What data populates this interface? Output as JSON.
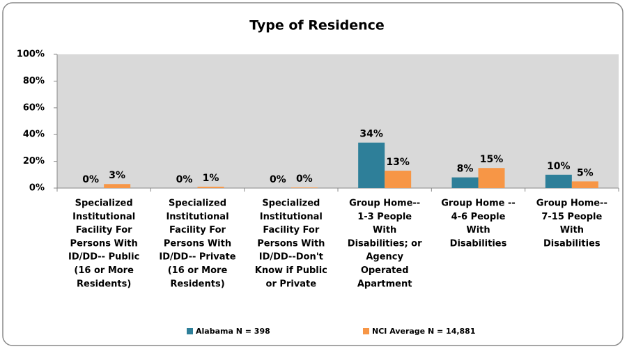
{
  "chart_data": {
    "type": "bar",
    "title": "Type of Residence",
    "categories": [
      [
        "Specialized",
        "Institutional",
        "Facility For",
        "Persons With",
        "ID/DD-- Public",
        "(16 or More",
        "Residents)"
      ],
      [
        "Specialized",
        "Institutional",
        "Facility For",
        "Persons With",
        "ID/DD-- Private",
        "(16 or More",
        "Residents)"
      ],
      [
        "Specialized",
        "Institutional",
        "Facility For",
        "Persons With",
        "ID/DD--Don't",
        "Know if Public",
        "or Private"
      ],
      [
        "Group Home--",
        "1-3 People",
        "With",
        "Disabilities; or",
        "Agency",
        "Operated",
        "Apartment"
      ],
      [
        "Group Home --",
        "4-6 People",
        "With",
        "Disabilities"
      ],
      [
        "Group Home--",
        "7-15 People",
        "With",
        "Disabilities"
      ]
    ],
    "series": [
      {
        "name": "Alabama N = 398",
        "color": "#2e7f99",
        "values": [
          0,
          0,
          0,
          34,
          8,
          10
        ],
        "value_labels": [
          "0%",
          "0%",
          "0%",
          "34%",
          "8%",
          "10%"
        ]
      },
      {
        "name": "NCI Average N = 14,881",
        "color": "#f79646",
        "values": [
          3,
          1,
          0.4,
          13,
          15,
          5
        ],
        "value_labels": [
          "3%",
          "1%",
          "0%",
          "13%",
          "15%",
          "5%"
        ]
      }
    ],
    "ylim": [
      0,
      100
    ],
    "yticks": [
      {
        "value": 0,
        "label": "0%"
      },
      {
        "value": 20,
        "label": "20%"
      },
      {
        "value": 40,
        "label": "40%"
      },
      {
        "value": 60,
        "label": "60%"
      },
      {
        "value": 80,
        "label": "80%"
      },
      {
        "value": 100,
        "label": "100%"
      }
    ],
    "grid": false,
    "legend": "bottom"
  }
}
